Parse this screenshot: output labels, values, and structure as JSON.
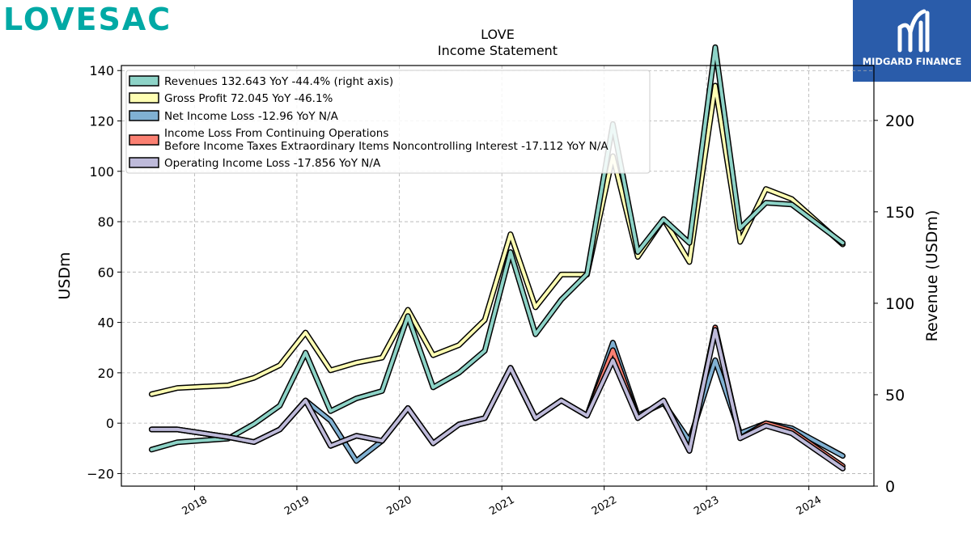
{
  "brand": {
    "name": "LOVESAC",
    "color": "#00A9A5"
  },
  "badge": {
    "name": "MIDGARD FINANCE",
    "bg_color": "#2A5CAA",
    "icon": "midgard-m-logo"
  },
  "chart_data": {
    "type": "line",
    "title": "LOVE",
    "subtitle": "Income Statement",
    "ylabel": "USDm",
    "ylabel_right": "Revenue (USDm)",
    "ylim": [
      -25,
      142
    ],
    "ylim_right": [
      0,
      230
    ],
    "yticks": [
      -20,
      0,
      20,
      40,
      60,
      80,
      100,
      120,
      140
    ],
    "yticks_right": [
      0,
      50,
      100,
      150,
      200
    ],
    "xlim": [
      "2017-04-15",
      "2024-08-20"
    ],
    "xticks": [
      "2018",
      "2019",
      "2020",
      "2021",
      "2022",
      "2023",
      "2024"
    ],
    "grid": true,
    "legend_position": "top-left",
    "x": [
      "2017-08-01",
      "2017-11-01",
      "2018-05-01",
      "2018-08-01",
      "2018-11-01",
      "2019-02-01",
      "2019-05-01",
      "2019-08-01",
      "2019-11-01",
      "2020-02-01",
      "2020-05-01",
      "2020-08-01",
      "2020-11-01",
      "2021-02-01",
      "2021-05-01",
      "2021-08-01",
      "2021-11-01",
      "2022-02-01",
      "2022-05-01",
      "2022-08-01",
      "2022-11-01",
      "2023-02-01",
      "2023-05-01",
      "2023-08-01",
      "2023-11-01",
      "2024-05-01"
    ],
    "series": [
      {
        "name": "Revenues",
        "legend_label": "Revenues  132.643 YoY -44.4% (right axis)",
        "axis": "right",
        "color": "#8DD3C7",
        "values": [
          20,
          24,
          26,
          34,
          44,
          73,
          41,
          48,
          52,
          93,
          54,
          62,
          74,
          128,
          83,
          102,
          116,
          198,
          128,
          146,
          133,
          240,
          141,
          155,
          154,
          133
        ]
      },
      {
        "name": "Gross Profit",
        "legend_label": "Gross Profit  72.045 YoY -46.1%",
        "axis": "left",
        "color": "#FFFFB3",
        "values": [
          11.5,
          14,
          15,
          18,
          23,
          36,
          21,
          24,
          26,
          45,
          27,
          31,
          41,
          75,
          46,
          59,
          59,
          106,
          66,
          81,
          64,
          134,
          72,
          93,
          89,
          71
        ]
      },
      {
        "name": "Net Income Loss",
        "legend_label": "Net Income Loss  -12.96 YoY N/A",
        "axis": "left",
        "color": "#80B1D3",
        "values": [
          -2.5,
          -2.5,
          -5.5,
          -7.5,
          -2.5,
          9,
          1,
          -15,
          -7,
          6,
          -8,
          -0.5,
          2,
          22,
          2,
          9,
          3,
          32,
          3,
          8,
          -7,
          25,
          -4,
          0,
          -2,
          -13
        ]
      },
      {
        "name": "Income Loss From Continuing Operations Before Income Taxes Extraordinary Items Noncontrolling Interest",
        "legend_label_1": "Income Loss From Continuing Operations",
        "legend_label_2": "Before Income Taxes Extraordinary Items Noncontrolling Interest  -17.112 YoY N/A",
        "axis": "left",
        "color": "#FB8072",
        "values": [
          -2.5,
          -2.5,
          -5.5,
          -7.5,
          -2.5,
          9,
          -9,
          -5,
          -7,
          6,
          -8,
          -0.5,
          2,
          22,
          2,
          9,
          3,
          29,
          2,
          9,
          -11,
          38,
          -6,
          0,
          -3,
          -17
        ]
      },
      {
        "name": "Operating Income Loss",
        "legend_label": "Operating Income Loss  -17.856 YoY N/A",
        "axis": "left",
        "color": "#BEBADA",
        "values": [
          -2.5,
          -2.5,
          -5.5,
          -7.5,
          -2.5,
          9,
          -9,
          -5,
          -7,
          6,
          -8,
          -0.5,
          2,
          22,
          2,
          9,
          3,
          25,
          2,
          9,
          -11,
          37,
          -6,
          -1,
          -4,
          -18
        ]
      }
    ]
  }
}
